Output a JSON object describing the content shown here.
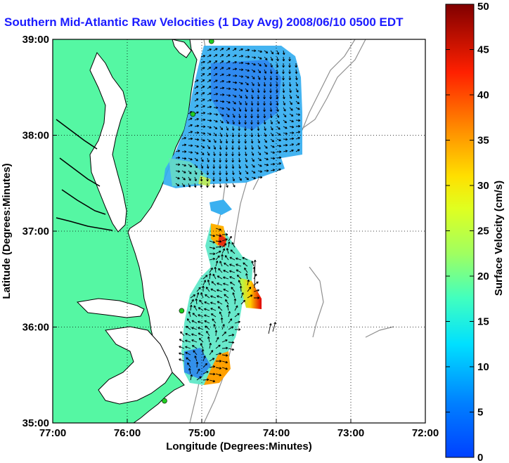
{
  "title": "Southern Mid-Atlantic Raw Velocities (1 Day Avg) 2008/06/10 0500 EDT",
  "map": {
    "x_label": "Longitude (Degrees:Minutes)",
    "y_label": "Latitude (Degrees:Minutes)",
    "x_ticks": [
      "77:00",
      "76:00",
      "75:00",
      "74:00",
      "73:00",
      "72:00"
    ],
    "y_ticks": [
      "39:00",
      "38:00",
      "37:00",
      "36:00",
      "35:00"
    ],
    "lon_range": [
      -77,
      -72
    ],
    "lat_range": [
      35,
      39
    ],
    "grid": "dotted",
    "land_color": "#55f7a3",
    "water_color": "#ffffff",
    "coast_color": "#000000",
    "bathymetry_color": "#909090",
    "vector_color": "#000000",
    "station_color": "#22cc22"
  },
  "colorbar": {
    "label": "Surface Velocity (cm/s)",
    "ticks": [
      "0",
      "5",
      "10",
      "15",
      "20",
      "25",
      "30",
      "35",
      "40",
      "45",
      "50"
    ],
    "range": [
      0,
      50
    ],
    "colormap": "jet"
  },
  "stations": [
    {
      "lon": -74.87,
      "lat": 38.98
    },
    {
      "lon": -75.12,
      "lat": 38.22
    },
    {
      "lon": -75.27,
      "lat": 36.17
    },
    {
      "lon": -75.5,
      "lat": 35.23
    }
  ]
}
